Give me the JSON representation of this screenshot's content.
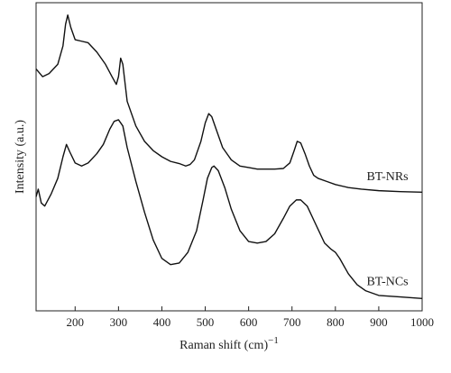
{
  "chart_data": {
    "type": "line",
    "xlabel": "Raman shift (cm)",
    "xlabel_superscript": "−1",
    "ylabel": "Intensity (a.u.)",
    "xlim": [
      110,
      1000
    ],
    "ylim": [
      0,
      1
    ],
    "x_ticks": [
      200,
      300,
      400,
      500,
      600,
      700,
      800,
      900,
      1000
    ],
    "y_ticks_shown": false,
    "grid": false,
    "series": [
      {
        "name": "BT-NRs",
        "color": "#111111",
        "points": [
          [
            110,
            0.785
          ],
          [
            125,
            0.76
          ],
          [
            140,
            0.77
          ],
          [
            160,
            0.8
          ],
          [
            172,
            0.86
          ],
          [
            178,
            0.93
          ],
          [
            183,
            0.96
          ],
          [
            190,
            0.92
          ],
          [
            200,
            0.88
          ],
          [
            215,
            0.875
          ],
          [
            230,
            0.87
          ],
          [
            250,
            0.84
          ],
          [
            270,
            0.8
          ],
          [
            285,
            0.76
          ],
          [
            295,
            0.735
          ],
          [
            300,
            0.76
          ],
          [
            305,
            0.82
          ],
          [
            310,
            0.8
          ],
          [
            320,
            0.68
          ],
          [
            340,
            0.6
          ],
          [
            360,
            0.55
          ],
          [
            380,
            0.52
          ],
          [
            400,
            0.5
          ],
          [
            420,
            0.485
          ],
          [
            440,
            0.478
          ],
          [
            455,
            0.47
          ],
          [
            465,
            0.475
          ],
          [
            475,
            0.49
          ],
          [
            490,
            0.55
          ],
          [
            500,
            0.61
          ],
          [
            508,
            0.64
          ],
          [
            515,
            0.63
          ],
          [
            525,
            0.59
          ],
          [
            540,
            0.53
          ],
          [
            560,
            0.49
          ],
          [
            580,
            0.47
          ],
          [
            600,
            0.465
          ],
          [
            620,
            0.46
          ],
          [
            640,
            0.46
          ],
          [
            660,
            0.46
          ],
          [
            680,
            0.462
          ],
          [
            695,
            0.48
          ],
          [
            705,
            0.52
          ],
          [
            712,
            0.55
          ],
          [
            720,
            0.545
          ],
          [
            730,
            0.51
          ],
          [
            740,
            0.47
          ],
          [
            750,
            0.44
          ],
          [
            760,
            0.43
          ],
          [
            780,
            0.42
          ],
          [
            800,
            0.41
          ],
          [
            830,
            0.4
          ],
          [
            860,
            0.395
          ],
          [
            900,
            0.39
          ],
          [
            950,
            0.387
          ],
          [
            1000,
            0.385
          ]
        ]
      },
      {
        "name": "BT-NCs",
        "color": "#111111",
        "points": [
          [
            110,
            0.37
          ],
          [
            115,
            0.395
          ],
          [
            122,
            0.35
          ],
          [
            130,
            0.34
          ],
          [
            145,
            0.38
          ],
          [
            160,
            0.43
          ],
          [
            172,
            0.5
          ],
          [
            180,
            0.54
          ],
          [
            188,
            0.515
          ],
          [
            200,
            0.48
          ],
          [
            215,
            0.47
          ],
          [
            230,
            0.48
          ],
          [
            250,
            0.51
          ],
          [
            265,
            0.54
          ],
          [
            280,
            0.59
          ],
          [
            290,
            0.615
          ],
          [
            300,
            0.62
          ],
          [
            310,
            0.6
          ],
          [
            320,
            0.53
          ],
          [
            340,
            0.42
          ],
          [
            360,
            0.32
          ],
          [
            380,
            0.23
          ],
          [
            400,
            0.17
          ],
          [
            420,
            0.15
          ],
          [
            440,
            0.155
          ],
          [
            460,
            0.19
          ],
          [
            480,
            0.26
          ],
          [
            495,
            0.36
          ],
          [
            505,
            0.43
          ],
          [
            515,
            0.465
          ],
          [
            520,
            0.47
          ],
          [
            530,
            0.455
          ],
          [
            545,
            0.4
          ],
          [
            560,
            0.33
          ],
          [
            580,
            0.26
          ],
          [
            600,
            0.225
          ],
          [
            620,
            0.22
          ],
          [
            640,
            0.225
          ],
          [
            660,
            0.25
          ],
          [
            680,
            0.3
          ],
          [
            695,
            0.34
          ],
          [
            710,
            0.36
          ],
          [
            720,
            0.36
          ],
          [
            735,
            0.34
          ],
          [
            755,
            0.28
          ],
          [
            775,
            0.22
          ],
          [
            790,
            0.2
          ],
          [
            800,
            0.19
          ],
          [
            810,
            0.17
          ],
          [
            830,
            0.12
          ],
          [
            850,
            0.085
          ],
          [
            870,
            0.065
          ],
          [
            900,
            0.05
          ],
          [
            950,
            0.045
          ],
          [
            1000,
            0.04
          ]
        ]
      }
    ],
    "annotations": [
      {
        "text": "BT-NRs",
        "series": "BT-NRs",
        "x": 920
      },
      {
        "text": "BT-NCs",
        "series": "BT-NCs",
        "x": 920
      }
    ]
  }
}
